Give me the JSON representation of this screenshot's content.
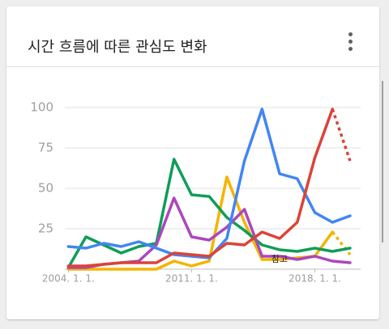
{
  "title": "시간 흐름에 따른 관심도 변화",
  "chart_data": {
    "type": "line",
    "x": [
      2004,
      2005,
      2006,
      2007,
      2008,
      2009,
      2010,
      2011,
      2012,
      2013,
      2014,
      2015,
      2016,
      2017,
      2018,
      2019,
      2020
    ],
    "xlim": [
      2003.8,
      2020.6
    ],
    "xticks": [
      {
        "value": 2004,
        "label": "2004. 1. 1."
      },
      {
        "value": 2011,
        "label": "2011. 1. 1."
      },
      {
        "value": 2018,
        "label": "2018. 1. 1."
      }
    ],
    "ylim": [
      0,
      100
    ],
    "yticks": [
      25,
      50,
      75,
      100
    ],
    "grid": true,
    "annotation": "참고",
    "annotation_x": 2016,
    "annotation_y": 6,
    "series": [
      {
        "color": "#f4b400",
        "values": [
          0,
          0,
          0,
          0,
          0,
          0,
          5,
          2,
          5,
          57,
          29,
          6,
          6,
          7,
          8,
          23,
          9
        ],
        "dashed_from": 15
      },
      {
        "color": "#0f9d58",
        "values": [
          1,
          20,
          15,
          10,
          14,
          16,
          68,
          46,
          45,
          32,
          24,
          15,
          12,
          11,
          13,
          11,
          13
        ]
      },
      {
        "color": "#ab47bc",
        "values": [
          1,
          1,
          3,
          4,
          5,
          15,
          44,
          20,
          18,
          26,
          37,
          8,
          8,
          6,
          8,
          5,
          4
        ]
      },
      {
        "color": "#4285f4",
        "values": [
          14,
          13,
          16,
          14,
          17,
          13,
          9,
          8,
          7,
          19,
          67,
          99,
          59,
          56,
          35,
          29,
          33
        ]
      },
      {
        "color": "#db4437",
        "values": [
          2,
          2,
          3,
          4,
          4,
          4,
          10,
          9,
          8,
          16,
          15,
          23,
          19,
          29,
          69,
          99,
          67
        ],
        "dashed_from": 15
      }
    ]
  }
}
